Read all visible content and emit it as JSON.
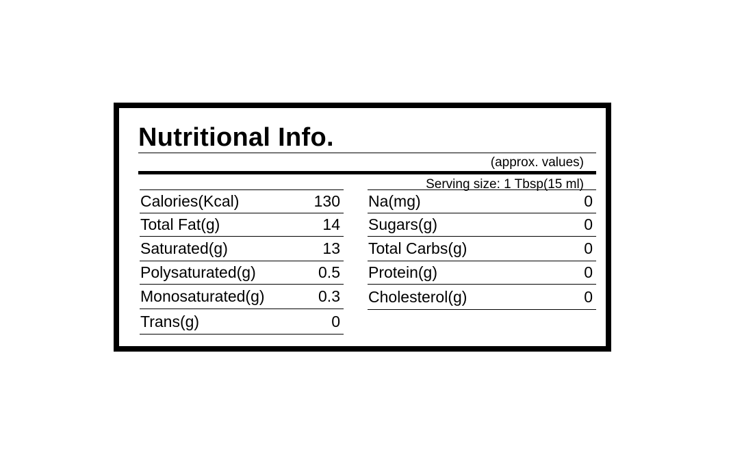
{
  "title": "Nutritional Info.",
  "approx_note": "(approx. values)",
  "serving_size": "Serving size: 1 Tbsp(15 ml)",
  "left_column": [
    {
      "label": "Calories(Kcal)",
      "value": "130"
    },
    {
      "label": "Total Fat(g)",
      "value": "14"
    },
    {
      "label": "Saturated(g)",
      "value": "13"
    },
    {
      "label": "Polysaturated(g)",
      "value": "0.5"
    },
    {
      "label": "Monosaturated(g)",
      "value": "0.3"
    },
    {
      "label": "Trans(g)",
      "value": "0"
    }
  ],
  "right_column": [
    {
      "label": "Na(mg)",
      "value": "0"
    },
    {
      "label": "Sugars(g)",
      "value": "0"
    },
    {
      "label": "Total Carbs(g)",
      "value": "0"
    },
    {
      "label": "Protein(g)",
      "value": "0"
    },
    {
      "label": "Cholesterol(g)",
      "value": "0"
    }
  ]
}
